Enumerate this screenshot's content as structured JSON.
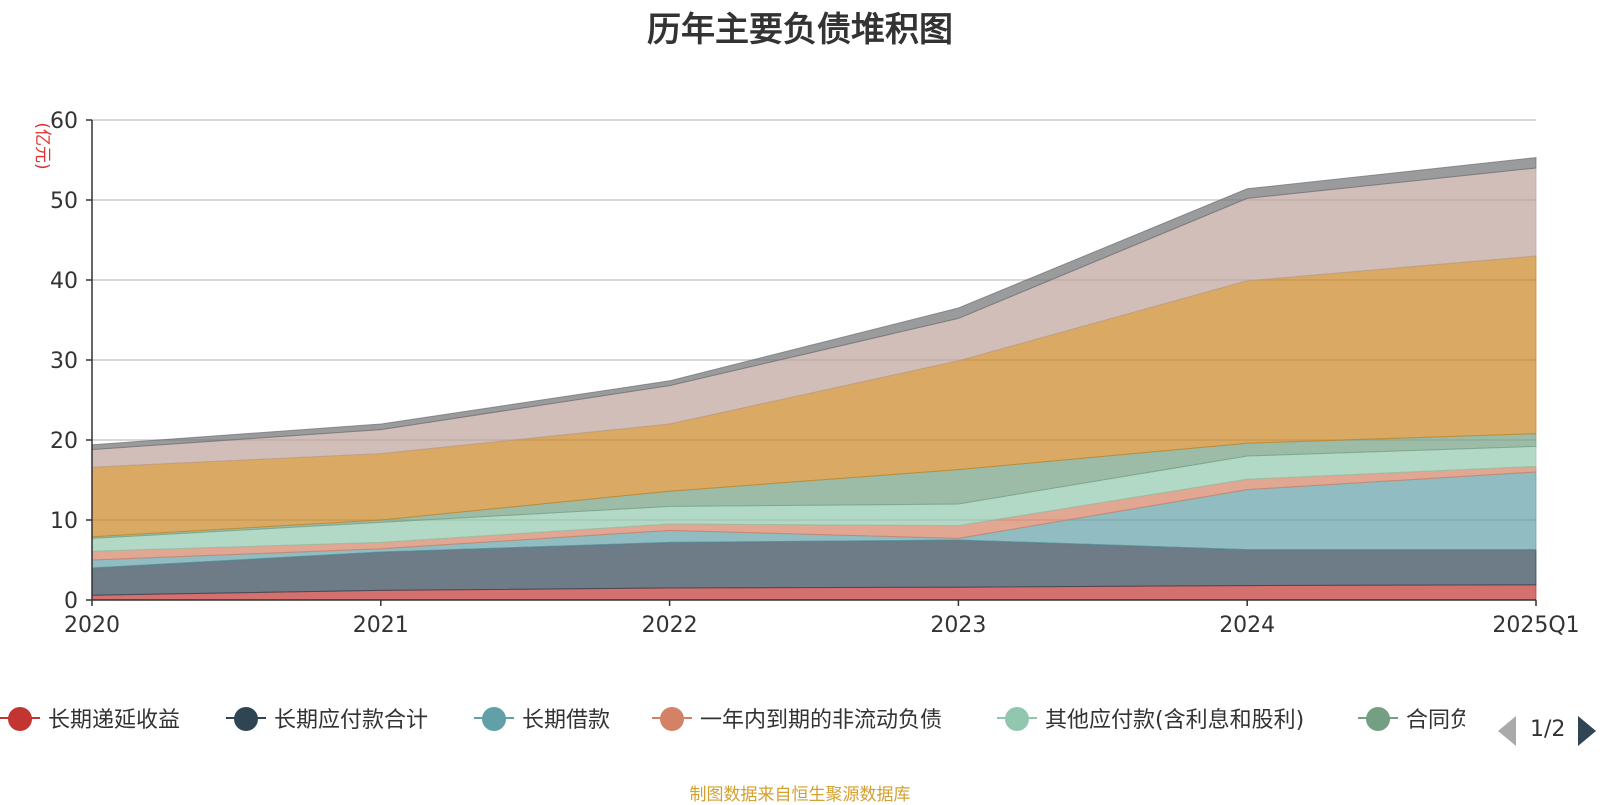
{
  "title": "历年主要负债堆积图",
  "source_note": "制图数据来自恒生聚源数据库",
  "pager": {
    "text": "1/2"
  },
  "chart_data": {
    "type": "area",
    "stacked": true,
    "title": "历年主要负债堆积图",
    "ylabel": "(亿元)",
    "ylabel_color": "#e03030",
    "ylim": [
      0,
      60
    ],
    "yticks": [
      0,
      10,
      20,
      30,
      40,
      50,
      60
    ],
    "x": [
      "2020",
      "2021",
      "2022",
      "2023",
      "2024",
      "2025Q1"
    ],
    "grid": true,
    "series": [
      {
        "name": "长期递延收益",
        "color": "#c23531",
        "values": [
          0.6,
          1.2,
          1.5,
          1.6,
          1.8,
          1.9
        ]
      },
      {
        "name": "长期应付款合计",
        "color": "#2f4554",
        "values": [
          3.4,
          4.8,
          5.7,
          5.9,
          4.5,
          4.4
        ]
      },
      {
        "name": "长期借款",
        "color": "#61a0a8",
        "values": [
          1.0,
          0.4,
          1.5,
          0.2,
          7.5,
          9.7
        ]
      },
      {
        "name": "一年内到期的非流动负债",
        "color": "#d48265",
        "values": [
          1.1,
          0.8,
          0.8,
          1.6,
          1.3,
          0.7
        ]
      },
      {
        "name": "其他应付款(含利息和股利)",
        "color": "#91c7ae",
        "values": [
          1.6,
          2.5,
          2.2,
          2.7,
          2.9,
          2.5
        ]
      },
      {
        "name": "合同负债",
        "color": "#749f83",
        "values": [
          0.2,
          0.3,
          1.9,
          4.3,
          1.6,
          1.6
        ]
      },
      {
        "name": "",
        "color": "#ca8622",
        "values": [
          8.7,
          8.3,
          8.4,
          13.6,
          20.3,
          22.2
        ]
      },
      {
        "name": "",
        "color": "#bda29a",
        "values": [
          2.2,
          3.0,
          4.8,
          5.3,
          10.3,
          11.0
        ]
      },
      {
        "name": "",
        "color": "#6e7074",
        "values": [
          0.6,
          0.7,
          0.6,
          1.3,
          1.2,
          1.3
        ]
      }
    ]
  },
  "legend": {
    "items": [
      {
        "label": "长期递延收益",
        "color": "#c23531"
      },
      {
        "label": "长期应付款合计",
        "color": "#2f4554"
      },
      {
        "label": "长期借款",
        "color": "#61a0a8"
      },
      {
        "label": "一年内到期的非流动负债",
        "color": "#d48265"
      },
      {
        "label": "其他应付款(含利息和股利)",
        "color": "#91c7ae"
      },
      {
        "label": "合同负债",
        "color": "#749f83"
      }
    ]
  }
}
